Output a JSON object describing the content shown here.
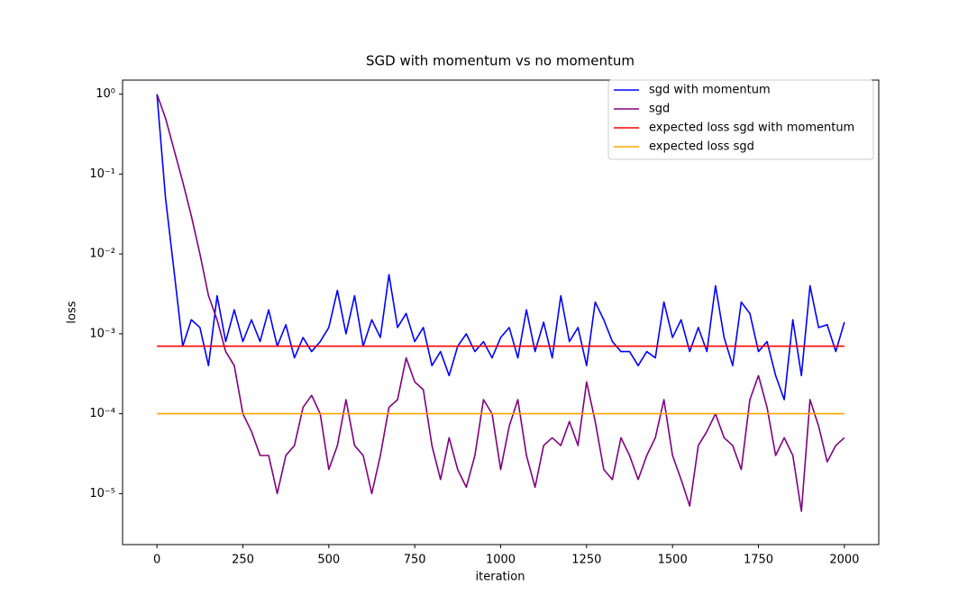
{
  "chart_data": {
    "type": "line",
    "title": "SGD with momentum vs no momentum",
    "x_label": "iteration",
    "y_label": "loss",
    "y_scale": "log",
    "legend": "upper right",
    "x": [
      0,
      25,
      50,
      75,
      100,
      125,
      150,
      175,
      200,
      225,
      250,
      275,
      300,
      325,
      350,
      375,
      400,
      425,
      450,
      475,
      500,
      525,
      550,
      575,
      600,
      625,
      650,
      675,
      700,
      725,
      750,
      775,
      800,
      825,
      850,
      875,
      900,
      925,
      950,
      975,
      1000,
      1025,
      1050,
      1075,
      1100,
      1125,
      1150,
      1175,
      1200,
      1225,
      1250,
      1275,
      1300,
      1325,
      1350,
      1375,
      1400,
      1425,
      1450,
      1475,
      1500,
      1525,
      1550,
      1575,
      1600,
      1625,
      1650,
      1675,
      1700,
      1725,
      1750,
      1775,
      1800,
      1825,
      1850,
      1875,
      1900,
      1925,
      1950,
      1975,
      2000
    ],
    "series": [
      {
        "name": "sgd with momentum",
        "color": "#0000ff",
        "values": [
          1,
          0.05,
          0.006,
          0.0007,
          0.0015,
          0.0012,
          0.0004,
          0.003,
          0.0008,
          0.002,
          0.0008,
          0.0015,
          0.0008,
          0.002,
          0.0007,
          0.0013,
          0.0005,
          0.0009,
          0.0006,
          0.0008,
          0.0012,
          0.0035,
          0.001,
          0.003,
          0.0007,
          0.0015,
          0.0009,
          0.0055,
          0.0012,
          0.0018,
          0.0008,
          0.0012,
          0.0004,
          0.0006,
          0.0003,
          0.0007,
          0.001,
          0.0006,
          0.0008,
          0.0005,
          0.0009,
          0.0012,
          0.0005,
          0.002,
          0.0006,
          0.0014,
          0.0005,
          0.003,
          0.0008,
          0.0012,
          0.0004,
          0.0025,
          0.0015,
          0.0008,
          0.0006,
          0.0006,
          0.0004,
          0.0006,
          0.0005,
          0.0025,
          0.0009,
          0.0015,
          0.0006,
          0.0012,
          0.0006,
          0.004,
          0.0009,
          0.0004,
          0.0025,
          0.0018,
          0.0006,
          0.0008,
          0.0003,
          0.00015,
          0.0015,
          0.0003,
          0.004,
          0.0012,
          0.0013,
          0.0006,
          0.0014
        ]
      },
      {
        "name": "sgd",
        "color": "#800080",
        "values": [
          1,
          0.5,
          0.2,
          0.08,
          0.03,
          0.01,
          0.003,
          0.0015,
          0.0006,
          0.0004,
          0.0001,
          6e-05,
          3e-05,
          3e-05,
          1e-05,
          3e-05,
          4e-05,
          0.00012,
          0.00017,
          0.0001,
          2e-05,
          4e-05,
          0.00015,
          4e-05,
          3e-05,
          1e-05,
          3e-05,
          0.00012,
          0.00015,
          0.0005,
          0.00025,
          0.0002,
          4e-05,
          1.5e-05,
          5e-05,
          2e-05,
          1.2e-05,
          3e-05,
          0.00015,
          0.0001,
          2e-05,
          7e-05,
          0.00015,
          3e-05,
          1.2e-05,
          4e-05,
          5e-05,
          4e-05,
          8e-05,
          4e-05,
          0.00025,
          8e-05,
          2e-05,
          1.5e-05,
          5e-05,
          3e-05,
          1.5e-05,
          3e-05,
          5e-05,
          0.00015,
          3e-05,
          1.5e-05,
          7e-06,
          4e-05,
          6e-05,
          0.0001,
          5e-05,
          4e-05,
          2e-05,
          0.00015,
          0.0003,
          0.00012,
          3e-05,
          5e-05,
          3e-05,
          6e-06,
          0.00015,
          7e-05,
          2.5e-05,
          4e-05,
          5e-05
        ]
      },
      {
        "name": "expected loss sgd with momentum",
        "color": "#ff0000",
        "x": [
          0,
          2000
        ],
        "values": [
          0.0007,
          0.0007
        ]
      },
      {
        "name": "expected loss sgd",
        "color": "#ffa500",
        "x": [
          0,
          2000
        ],
        "values": [
          0.0001,
          0.0001
        ]
      }
    ],
    "xlim": [
      -100,
      2100
    ],
    "xticks": [
      0,
      250,
      500,
      750,
      1000,
      1250,
      1500,
      1750,
      2000
    ],
    "ylim": [
      2.3e-06,
      1.5
    ],
    "yticks": [
      {
        "value": 1e-05,
        "label": "10⁻⁵"
      },
      {
        "value": 0.0001,
        "label": "10⁻⁴"
      },
      {
        "value": 0.001,
        "label": "10⁻³"
      },
      {
        "value": 0.01,
        "label": "10⁻²"
      },
      {
        "value": 0.1,
        "label": "10⁻¹"
      },
      {
        "value": 1,
        "label": "10⁰"
      }
    ]
  }
}
